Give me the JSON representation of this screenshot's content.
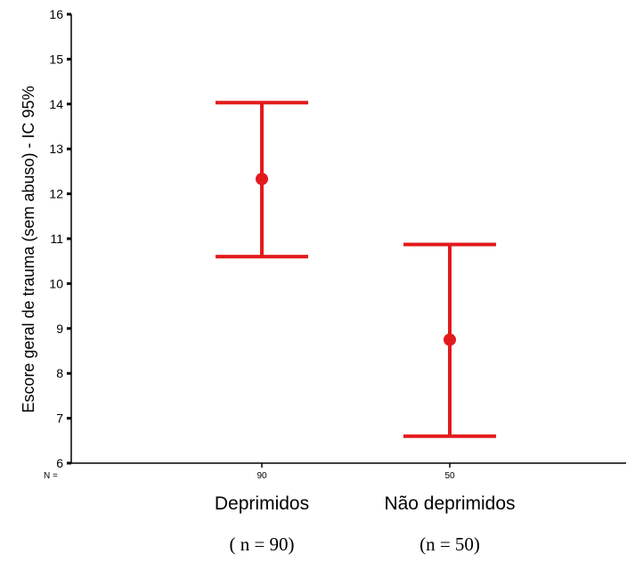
{
  "chart_data": {
    "type": "errorbar",
    "ylabel": "Escore geral de trauma (sem abuso) - IC 95%",
    "ylim": [
      6,
      16
    ],
    "yticks": [
      6,
      7,
      8,
      9,
      10,
      11,
      12,
      13,
      14,
      15,
      16
    ],
    "n_prefix": "N =",
    "grid": false,
    "color": "#e31a1c",
    "categories": [
      {
        "label": "Deprimidos",
        "n_tick": "90",
        "count_label": "( n = 90)",
        "mean": 12.33,
        "lower": 10.6,
        "upper": 14.03
      },
      {
        "label": "Não deprimidos",
        "n_tick": "50",
        "count_label": "(n = 50)",
        "mean": 8.75,
        "lower": 6.6,
        "upper": 10.87
      }
    ]
  }
}
